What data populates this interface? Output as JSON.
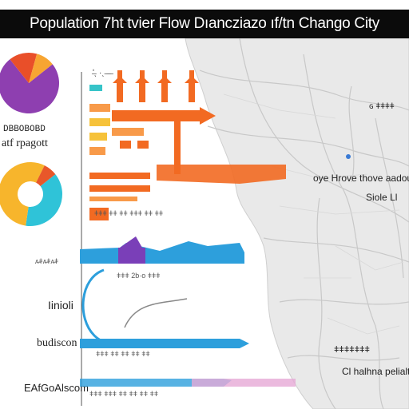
{
  "title": "Population  7ht tvier Flow Dıancziazo ıf/tn Chango City",
  "chart_data": [
    {
      "type": "pie",
      "title": "",
      "slices": [
        {
          "value": 75,
          "color": "#8e3fb0"
        },
        {
          "value": 15,
          "color": "#e94f29"
        },
        {
          "value": 10,
          "color": "#f7a532"
        }
      ]
    },
    {
      "type": "donut",
      "title": "",
      "slices": [
        {
          "value": 38,
          "color": "#2fc3d8"
        },
        {
          "value": 55,
          "color": "#f7b52c"
        },
        {
          "value": 7,
          "color": "#e8572a"
        }
      ]
    }
  ],
  "flows": {
    "palette": {
      "orange": "#f26a22",
      "light_orange": "#f89a49",
      "yellow": "#f6c23a",
      "teal": "#37c4c9",
      "blue": "#2d9fdc",
      "purple": "#7a3fb8",
      "pink": "#e6a9d6"
    }
  },
  "labels": {
    "legend_line1": "DBBOBOBD",
    "legend_line2": "atf rpagott",
    "row_label_1": "ʌ̶ǂʌ̶ǂʌ̶ǂ",
    "row_label_2": "Iinioli",
    "row_label_3": "budiscon",
    "row_label_4": "EAfGoAlscom",
    "top_ticks": "ʹ̶ˎ  ·ˎ  ̶ ̶ ̶",
    "bottom_ticks_1": "ǂǂǂ  ǂǂ  ǂǂ  ǂǂǂ  ǂǂ  ǂǂ",
    "bottom_ticks_2": "ǂǂǂ   2b·o   ǂǂǂ",
    "bottom_ticks_3": "ǂǂǂ  ǂǂ  ǂǂ  ǂǂ  ǂǂ",
    "bottom_ticks_4": "ǂǂǂ  ǂǂǂ  ǂǂ  ǂǂ  ǂǂ  ǂǂ"
  },
  "map_labels": {
    "area_1": "ɢ ǂǂǂǂ",
    "area_2": "oye Hrove thove aadouts",
    "area_3": "Siole Ll",
    "area_4": "ǂǂǂǂǂǂǂ",
    "area_5": "Cl halhna pelialts"
  }
}
